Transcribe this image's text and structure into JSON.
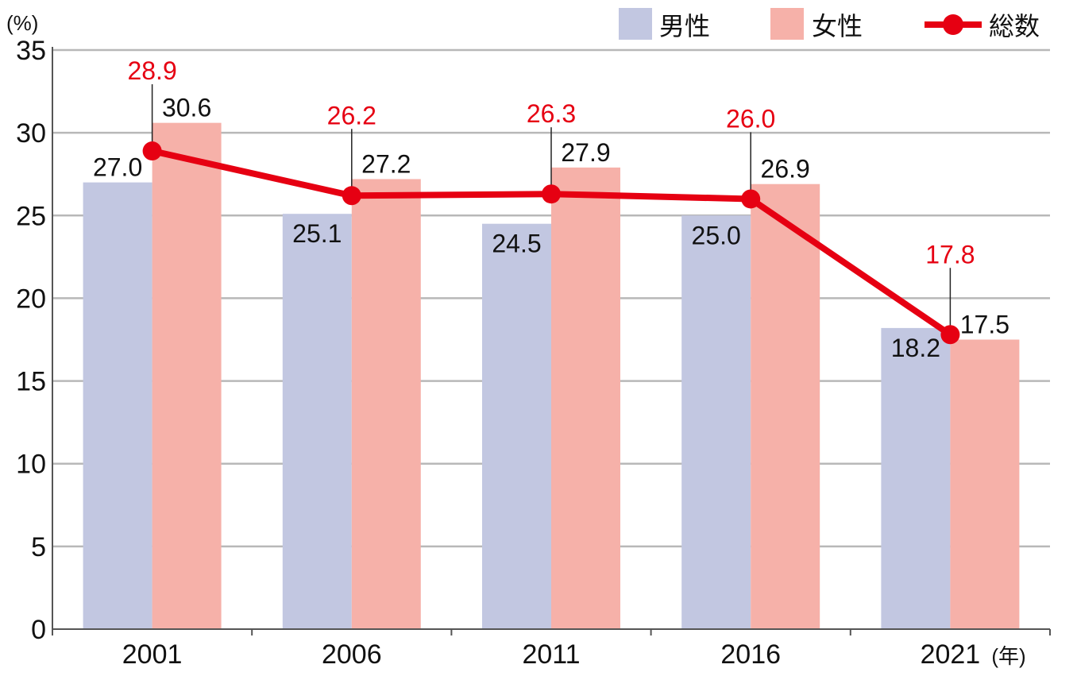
{
  "chart_data": {
    "type": "bar",
    "y_unit": "(%)",
    "x_unit": "(年)",
    "ylim": [
      0,
      35
    ],
    "y_ticks": [
      "0",
      "5",
      "10",
      "15",
      "20",
      "25",
      "30",
      "35"
    ],
    "categories": [
      "2001",
      "2006",
      "2011",
      "2016",
      "2021"
    ],
    "grid": true,
    "legend_position": "top-right",
    "series": [
      {
        "name": "男性",
        "kind": "bar",
        "color": "#c2c7e1",
        "values": [
          27.0,
          25.1,
          24.5,
          25.0,
          18.2
        ],
        "labels": [
          "27.0",
          "25.1",
          "24.5",
          "25.0",
          "18.2"
        ]
      },
      {
        "name": "女性",
        "kind": "bar",
        "color": "#f6b1a9",
        "values": [
          30.6,
          27.2,
          27.9,
          26.9,
          17.5
        ],
        "labels": [
          "30.6",
          "27.2",
          "27.9",
          "26.9",
          "17.5"
        ]
      },
      {
        "name": "総数",
        "kind": "line",
        "color": "#e60012",
        "values": [
          28.9,
          26.2,
          26.3,
          26.0,
          17.8
        ],
        "labels": [
          "28.9",
          "26.2",
          "26.3",
          "26.0",
          "17.8"
        ]
      }
    ]
  }
}
